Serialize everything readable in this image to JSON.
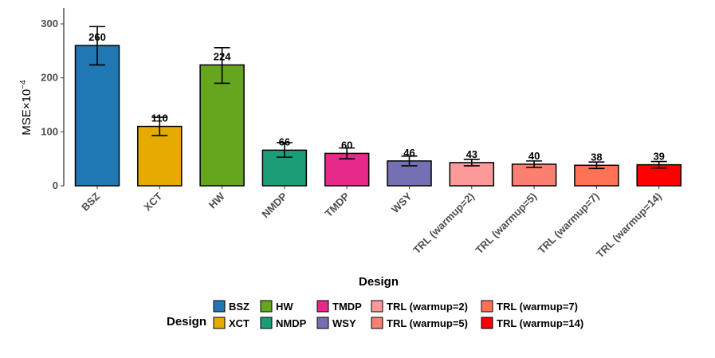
{
  "chart_data": {
    "type": "bar",
    "categories": [
      "BSZ",
      "XCT",
      "HW",
      "NMDP",
      "TMDP",
      "WSY",
      "TRL (warmup=2)",
      "TRL (warmup=5)",
      "TRL (warmup=7)",
      "TRL (warmup=14)"
    ],
    "values": [
      260,
      110,
      224,
      66,
      60,
      46,
      43,
      40,
      38,
      39
    ],
    "data_labels": [
      "260",
      "110",
      "224",
      "66",
      "60",
      "46",
      "43",
      "40",
      "38",
      "39"
    ],
    "error_low": [
      224,
      93,
      190,
      53,
      50,
      37,
      37,
      34,
      32,
      33
    ],
    "error_high": [
      295,
      127,
      256,
      80,
      70,
      55,
      49,
      46,
      44,
      45
    ],
    "colors": [
      "#1F77B4",
      "#E6AB02",
      "#66A61E",
      "#1B9E77",
      "#E7298A",
      "#7570B3",
      "#FB9A99",
      "#FB8072",
      "#FF7256",
      "#FF0000"
    ],
    "xlabel": "Design",
    "ylabel_prefix": "MSE",
    "ylabel_times": "×",
    "ylabel_base": "10",
    "ylabel_exp": "−4",
    "ylim": [
      0,
      305
    ],
    "yticks": [
      "0",
      "100",
      "200",
      "300"
    ],
    "ytick_values": [
      0,
      100,
      200,
      300
    ],
    "grid": false,
    "legend": {
      "title": "Design",
      "placement": "bottom"
    }
  }
}
